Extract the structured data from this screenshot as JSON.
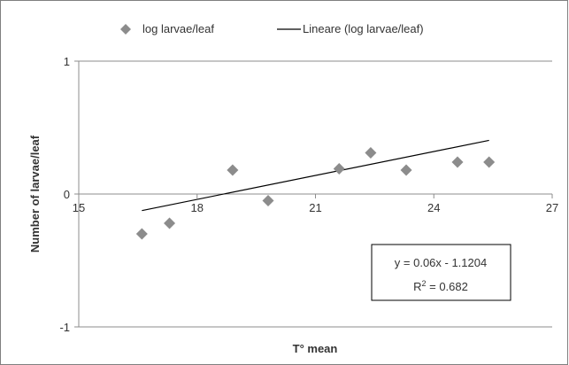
{
  "chart_data": {
    "type": "scatter",
    "title": "",
    "xlabel": "T° mean",
    "ylabel": "Number of larvae/leaf",
    "xlim": [
      15,
      27
    ],
    "ylim": [
      -1,
      1
    ],
    "x_ticks": [
      "15",
      "18",
      "21",
      "24",
      "27"
    ],
    "y_ticks": [
      "1",
      "0",
      "-1"
    ],
    "grid": "horizontal",
    "legend_position": "top",
    "series": [
      {
        "name": "log larvae/leaf",
        "marker": "diamond",
        "color": "#8c8c8c",
        "points": [
          {
            "x": 16.6,
            "y": -0.3
          },
          {
            "x": 17.3,
            "y": -0.22
          },
          {
            "x": 18.9,
            "y": 0.18
          },
          {
            "x": 19.8,
            "y": -0.05
          },
          {
            "x": 21.6,
            "y": 0.19
          },
          {
            "x": 22.4,
            "y": 0.31
          },
          {
            "x": 23.3,
            "y": 0.18
          },
          {
            "x": 24.6,
            "y": 0.24
          },
          {
            "x": 25.4,
            "y": 0.24
          }
        ]
      }
    ],
    "trendline": {
      "name": "Lineare (log larvae/leaf)",
      "color": "#000000",
      "slope": 0.06,
      "intercept": -1.1204,
      "x_start": 16.6,
      "x_end": 25.4,
      "equation": "y = 0.06x - 1.1204",
      "r2_label": "R",
      "r2_sup": "2",
      "r2_value": " = 0.682"
    }
  }
}
